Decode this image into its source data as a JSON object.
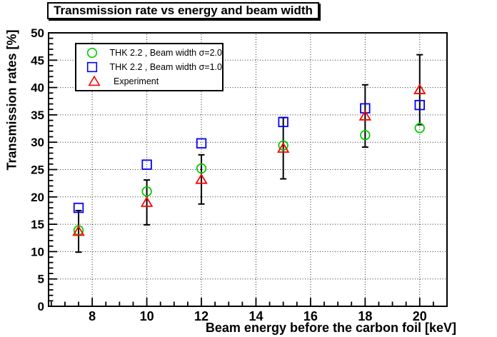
{
  "chart_data": {
    "type": "scatter",
    "title": "Transmission rate vs energy and beam width",
    "xlabel": "Beam energy before the carbon foil [keV]",
    "ylabel": "Transmission rates [%]",
    "xlim": [
      6.4,
      21.0
    ],
    "ylim": [
      0,
      50
    ],
    "x_major_ticks": [
      8,
      10,
      12,
      14,
      16,
      18,
      20
    ],
    "x_minor_step": 0.5,
    "y_major_ticks": [
      0,
      5,
      10,
      15,
      20,
      25,
      30,
      35,
      40,
      45,
      50
    ],
    "y_minor_step": 1,
    "grid": true,
    "grid_style": "dotted",
    "legend_position": "top-left",
    "frame_color": "#000000",
    "background_color": "#ffffff",
    "series": [
      {
        "name": "THK 2.2 , Beam width σ=2.0",
        "marker": "open-circle",
        "color": "#00cc00",
        "x": [
          7.5,
          10,
          12,
          15,
          18,
          20
        ],
        "y": [
          13.9,
          21.0,
          25.2,
          29.4,
          31.3,
          32.6
        ]
      },
      {
        "name": "THK 2.2 , Beam width σ=1.0",
        "marker": "open-square",
        "color": "#0000ff",
        "x": [
          7.5,
          10,
          12,
          15,
          18,
          20
        ],
        "y": [
          18.0,
          25.9,
          29.8,
          33.7,
          36.2,
          36.8
        ]
      },
      {
        "name": "Experiment",
        "marker": "open-triangle",
        "color": "#ff0000",
        "error_color": "#000000",
        "x": [
          7.5,
          10,
          12,
          15,
          18,
          20
        ],
        "y": [
          13.7,
          19.0,
          23.2,
          28.9,
          34.8,
          39.6
        ],
        "yerr": [
          3.8,
          4.1,
          4.5,
          5.6,
          5.7,
          6.4
        ]
      }
    ]
  }
}
